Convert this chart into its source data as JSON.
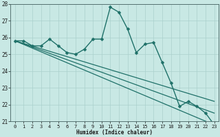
{
  "xlabel": "Humidex (Indice chaleur)",
  "xlim": [
    -0.5,
    23.5
  ],
  "ylim": [
    21,
    28
  ],
  "yticks": [
    21,
    22,
    23,
    24,
    25,
    26,
    27,
    28
  ],
  "xticks": [
    0,
    1,
    2,
    3,
    4,
    5,
    6,
    7,
    8,
    9,
    10,
    11,
    12,
    13,
    14,
    15,
    16,
    17,
    18,
    19,
    20,
    21,
    22,
    23
  ],
  "bg_color": "#c8e8e4",
  "grid_color": "#aad0cc",
  "line_color": "#1e7068",
  "lines": [
    {
      "x": [
        0,
        1,
        2,
        3,
        4,
        5,
        6,
        7,
        8,
        9,
        10,
        11,
        12,
        13,
        14,
        15,
        16,
        17,
        18,
        19,
        20,
        21,
        22,
        23
      ],
      "y": [
        25.8,
        25.8,
        25.5,
        25.5,
        25.9,
        25.5,
        25.1,
        25.0,
        25.3,
        25.9,
        25.9,
        27.8,
        27.5,
        26.5,
        25.1,
        25.6,
        25.7,
        24.5,
        23.3,
        21.9,
        22.2,
        21.9,
        21.5,
        20.8
      ],
      "has_marker": true,
      "markersize": 2.5,
      "linewidth": 1.0
    },
    {
      "x": [
        0,
        23
      ],
      "y": [
        25.8,
        20.8
      ],
      "has_marker": false,
      "markersize": 0,
      "linewidth": 0.9
    },
    {
      "x": [
        0,
        23
      ],
      "y": [
        25.8,
        21.5
      ],
      "has_marker": false,
      "markersize": 0,
      "linewidth": 0.9
    },
    {
      "x": [
        0,
        23
      ],
      "y": [
        25.8,
        22.2
      ],
      "has_marker": false,
      "markersize": 0,
      "linewidth": 0.9
    }
  ],
  "xlabel_fontsize": 5.5,
  "tick_fontsize": 5.0,
  "ytick_fontsize": 5.5
}
